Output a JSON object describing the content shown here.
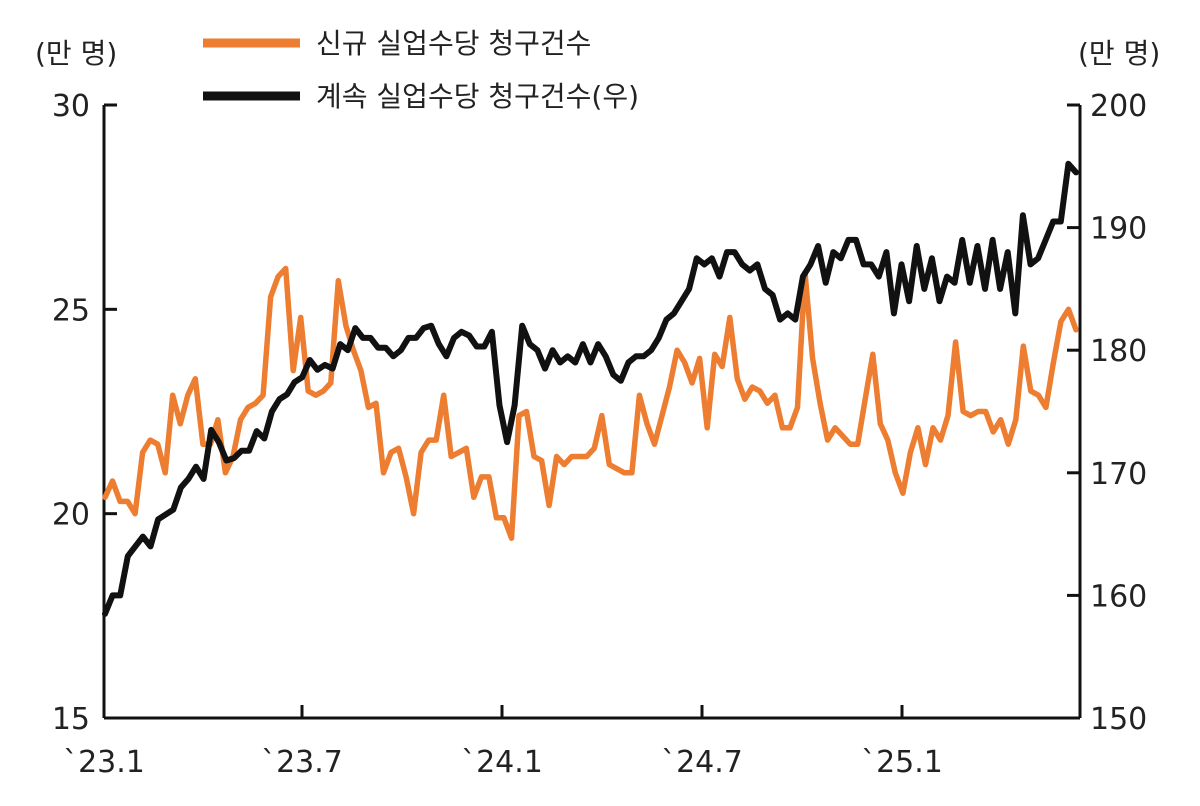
{
  "chart_data": {
    "type": "line",
    "x_ticks": [
      "`23.1",
      "`23.7",
      "`24.1",
      "`24.7",
      "`25.1"
    ],
    "left_unit": "(만 명)",
    "right_unit": "(만 명)",
    "left_axis": {
      "min": 15,
      "max": 30,
      "ticks": [
        15,
        20,
        25,
        30
      ]
    },
    "right_axis": {
      "min": 150,
      "max": 200,
      "ticks": [
        150,
        160,
        170,
        180,
        190,
        200
      ]
    },
    "grid": false,
    "legend_position": "top-center",
    "series": [
      {
        "name": "신규 실업수당 청구건수",
        "axis": "left",
        "color": "#ED7D31",
        "values": [
          20.4,
          20.8,
          20.3,
          20.3,
          20.0,
          21.5,
          21.8,
          21.7,
          21.0,
          22.9,
          22.2,
          22.9,
          23.3,
          21.7,
          21.7,
          22.3,
          21.0,
          21.4,
          22.3,
          22.6,
          22.7,
          22.9,
          25.3,
          25.8,
          26.0,
          23.5,
          24.8,
          23.0,
          22.9,
          23.0,
          23.2,
          25.7,
          24.6,
          24.0,
          23.5,
          22.6,
          22.7,
          21.0,
          21.5,
          21.6,
          20.9,
          20.0,
          21.5,
          21.8,
          21.8,
          22.9,
          21.4,
          21.5,
          21.6,
          20.4,
          20.9,
          20.9,
          19.9,
          19.9,
          19.4,
          22.4,
          22.5,
          21.4,
          21.3,
          20.2,
          21.4,
          21.2,
          21.4,
          21.4,
          21.4,
          21.6,
          22.4,
          21.2,
          21.1,
          21.0,
          21.0,
          22.9,
          22.2,
          21.7,
          22.4,
          23.1,
          24.0,
          23.7,
          23.2,
          23.8,
          22.1,
          23.9,
          23.6,
          24.8,
          23.3,
          22.8,
          23.1,
          23.0,
          22.7,
          22.9,
          22.1,
          22.1,
          22.6,
          25.9,
          23.8,
          22.7,
          21.8,
          22.1,
          21.9,
          21.7,
          21.7,
          22.8,
          23.9,
          22.2,
          21.8,
          21.0,
          20.5,
          21.5,
          22.1,
          21.2,
          22.1,
          21.8,
          22.4,
          24.2,
          22.5,
          22.4,
          22.5,
          22.5,
          22.0,
          22.3,
          21.7,
          22.3,
          24.1,
          23.0,
          22.9,
          22.6,
          23.7,
          24.7,
          25.0,
          24.5
        ]
      },
      {
        "name": "계속 실업수당 청구건수(우)",
        "axis": "right",
        "color": "#111111",
        "values": [
          158.5,
          160,
          160,
          163.2,
          164,
          164.8,
          164,
          166.2,
          166.6,
          167,
          168.8,
          169.5,
          170.5,
          169.5,
          173.5,
          172.5,
          171,
          171.2,
          171.8,
          171.8,
          173.4,
          172.8,
          175,
          176,
          176.4,
          177.4,
          177.8,
          179.2,
          178.4,
          178.8,
          178.5,
          180.5,
          180,
          181.8,
          181,
          181,
          180.2,
          180.2,
          179.5,
          180,
          181,
          181,
          181.8,
          182,
          180.5,
          179.5,
          181,
          181.5,
          181.2,
          180.3,
          180.3,
          181.5,
          175.5,
          172.5,
          175.5,
          182,
          180.5,
          180,
          178.5,
          180,
          179,
          179.5,
          179,
          180.5,
          179,
          180.5,
          179.5,
          178,
          177.5,
          179,
          179.5,
          179.5,
          180,
          181,
          182.5,
          183,
          184,
          185,
          187.5,
          187,
          187.5,
          186,
          188,
          188,
          187,
          186.5,
          187,
          185,
          184.5,
          182.5,
          183,
          182.5,
          186,
          187,
          188.5,
          185.5,
          188,
          187.5,
          189,
          189,
          187,
          187,
          186,
          188,
          183,
          187,
          184,
          188.5,
          185,
          187.5,
          184,
          186,
          185.5,
          189,
          185.5,
          188.5,
          185,
          189,
          185,
          188,
          183,
          191,
          187,
          187.5,
          189,
          190.5,
          190.5,
          195.2,
          194.5
        ]
      }
    ]
  }
}
